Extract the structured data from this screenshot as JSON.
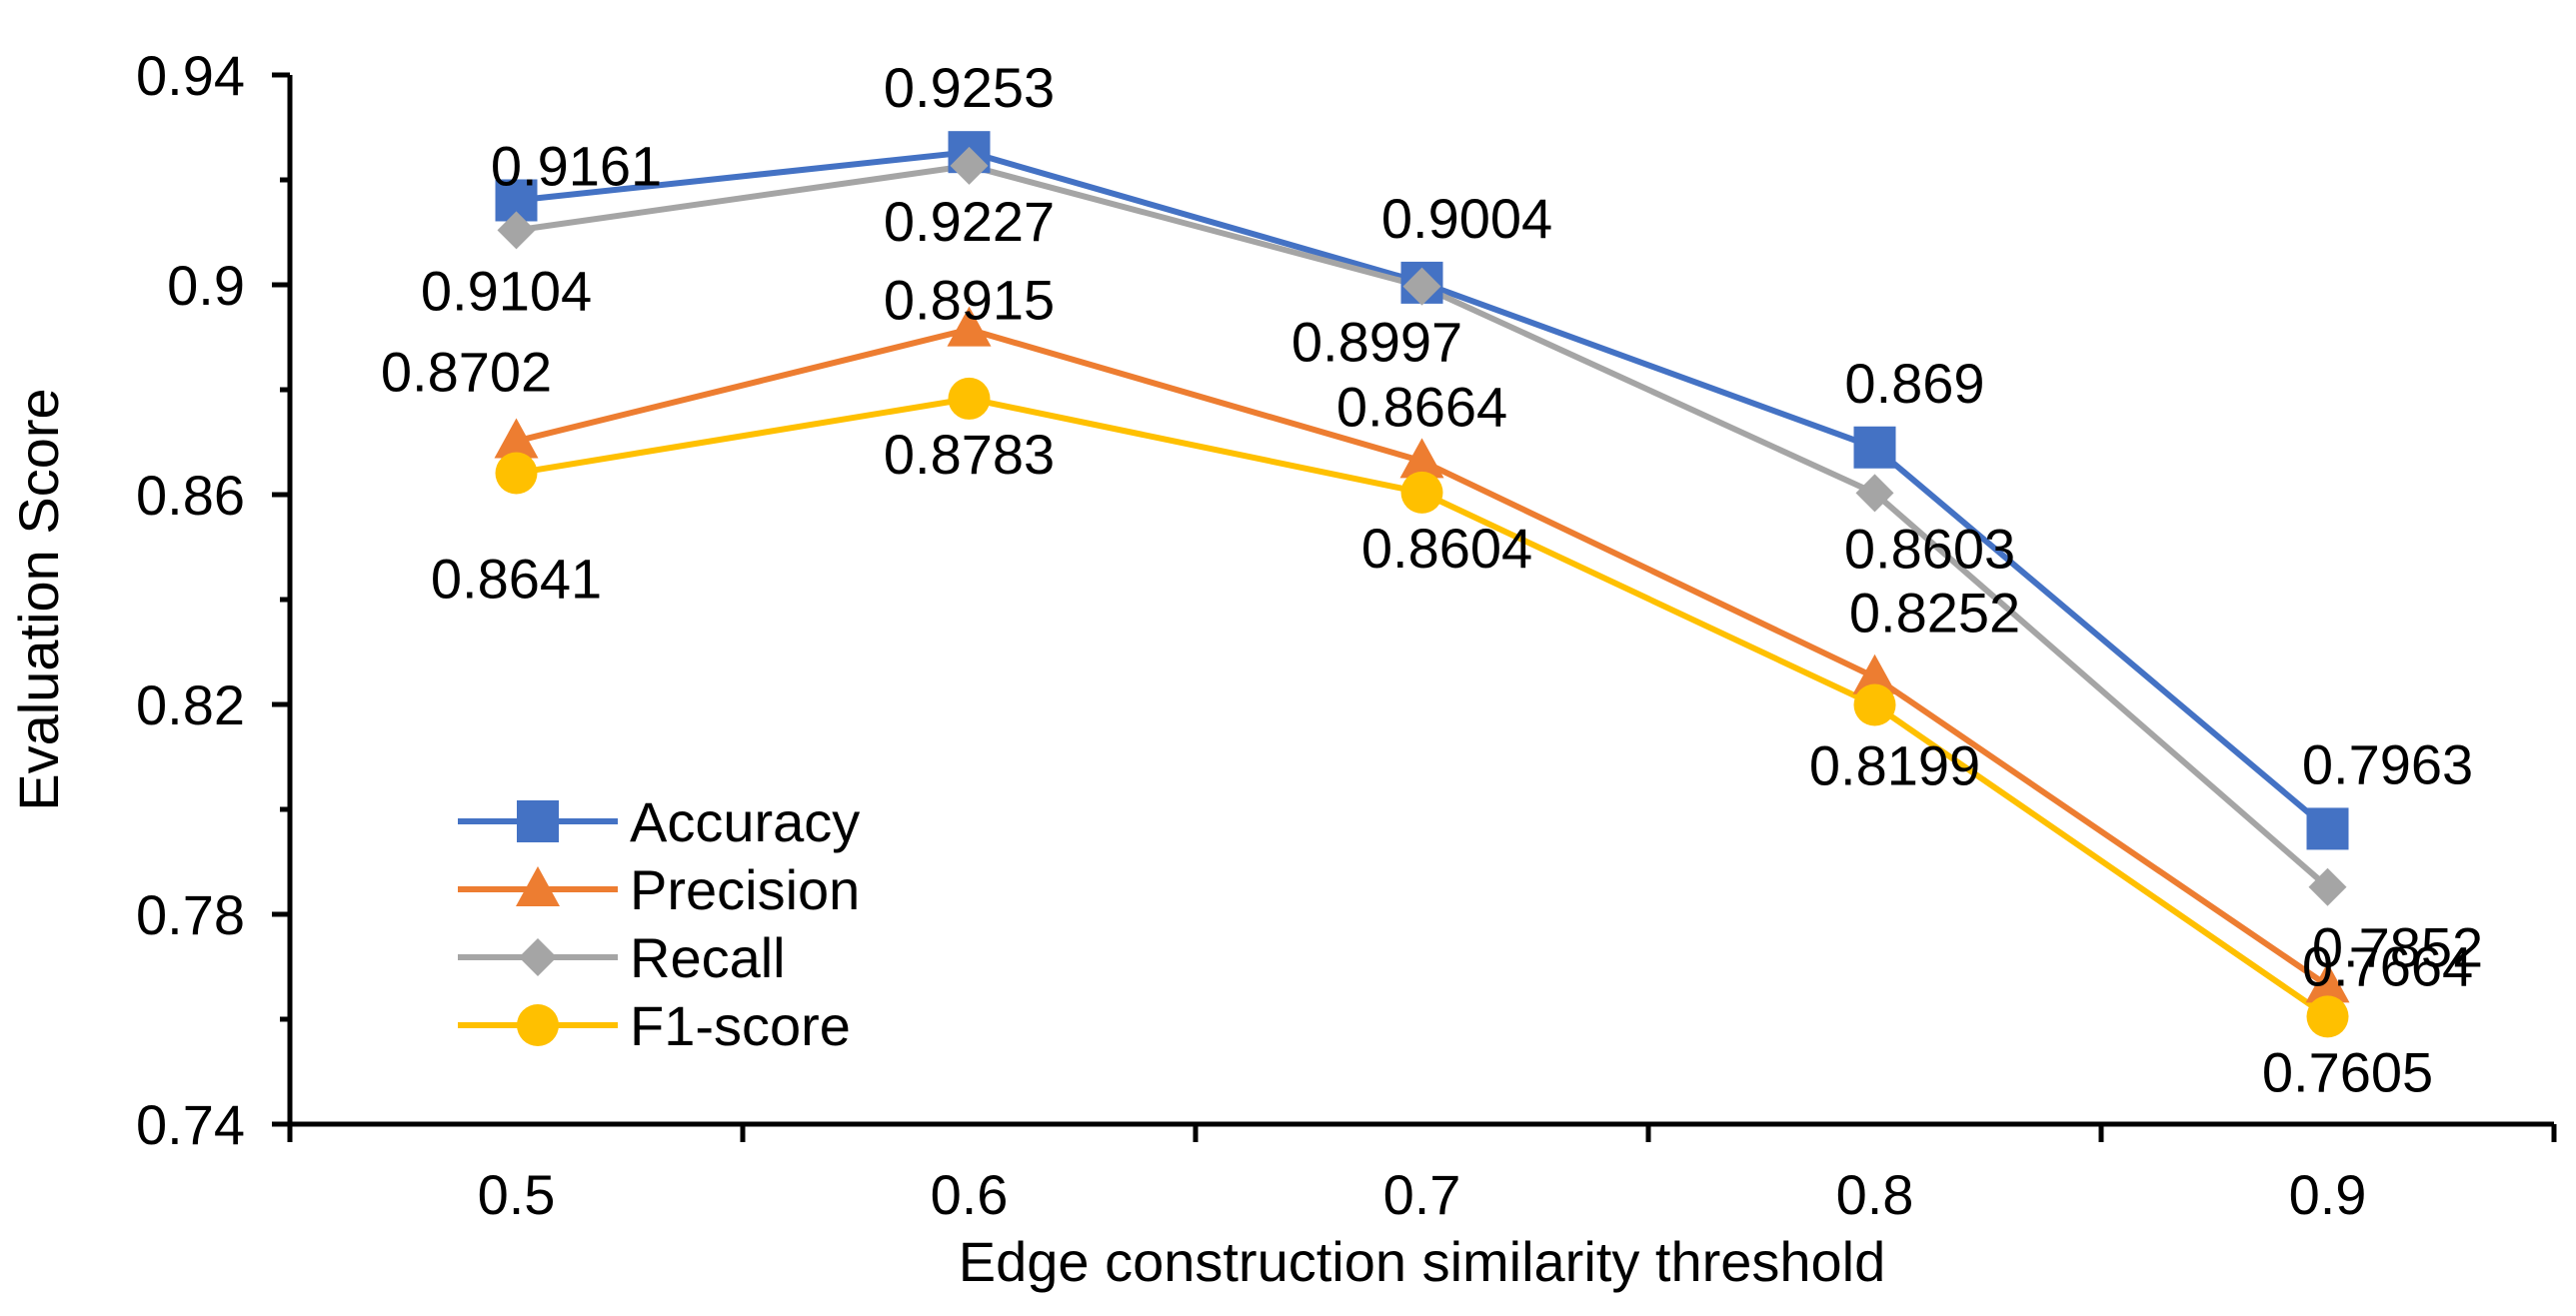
{
  "chart_data": {
    "type": "line",
    "xlabel": "Edge construction similarity threshold",
    "ylabel": "Evaluation Score",
    "x": [
      0.5,
      0.6,
      0.7,
      0.8,
      0.9
    ],
    "x_tick_labels": [
      "0.5",
      "0.6",
      "0.7",
      "0.8",
      "0.9"
    ],
    "xlim": [
      0.45,
      0.95
    ],
    "ylim": [
      0.74,
      0.94
    ],
    "y_ticks": [
      0.74,
      0.78,
      0.82,
      0.86,
      0.9,
      0.94
    ],
    "y_tick_labels": [
      "0.74",
      "0.78",
      "0.82",
      "0.86",
      "0.9",
      "0.94"
    ],
    "grid": false,
    "legend_position": "lower-left",
    "series": [
      {
        "name": "Accuracy",
        "color": "#4472C4",
        "marker": "square",
        "values": [
          0.9161,
          0.9253,
          0.9004,
          0.869,
          0.7963
        ],
        "labels": [
          "0.9161",
          "0.9253",
          "0.9004",
          "0.869",
          "0.7963"
        ]
      },
      {
        "name": "Precision",
        "color": "#ED7D31",
        "marker": "triangle",
        "values": [
          0.8702,
          0.8915,
          0.8664,
          0.8252,
          0.7664
        ],
        "labels": [
          "0.8702",
          "0.8915",
          "0.8664",
          "0.8252",
          "0.7664"
        ]
      },
      {
        "name": "Recall",
        "color": "#A5A5A5",
        "marker": "diamond",
        "values": [
          0.9104,
          0.9227,
          0.8997,
          0.8603,
          0.7852
        ],
        "labels": [
          "0.9104",
          "0.9227",
          "0.8997",
          "0.8603",
          "0.7852"
        ]
      },
      {
        "name": "F1-score",
        "color": "#FFC000",
        "marker": "circle",
        "values": [
          0.8641,
          0.8783,
          0.8604,
          0.8199,
          0.7605
        ],
        "labels": [
          "0.8641",
          "0.8783",
          "0.8604",
          "0.8199",
          "0.7605"
        ]
      }
    ]
  }
}
